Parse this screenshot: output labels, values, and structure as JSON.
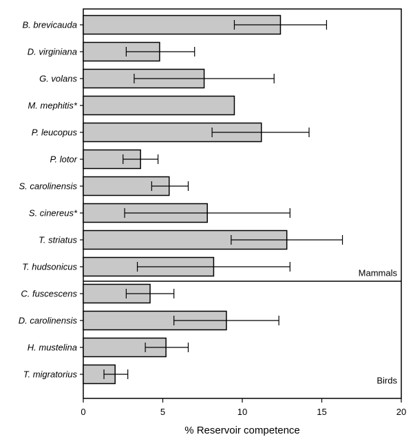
{
  "chart_data": {
    "type": "bar",
    "orientation": "horizontal",
    "xlabel": "% Reservoir competence",
    "xlim": [
      0,
      20
    ],
    "xticks": [
      0,
      5,
      10,
      15,
      20
    ],
    "grid": false,
    "groups": [
      {
        "name": "Mammals",
        "categories": [
          "B. brevicauda",
          "D. virginiana",
          "G. volans",
          "M. mephitis*",
          "P. leucopus",
          "P. lotor",
          "S. carolinensis",
          "S. cinereus*",
          "T. striatus",
          "T. hudsonicus"
        ],
        "values": [
          12.4,
          4.8,
          7.6,
          9.5,
          11.2,
          3.6,
          5.4,
          7.8,
          12.8,
          8.2
        ],
        "err_low": [
          9.5,
          2.7,
          3.2,
          null,
          8.1,
          2.5,
          4.3,
          2.6,
          9.3,
          3.4
        ],
        "err_high": [
          15.3,
          7.0,
          12.0,
          null,
          14.2,
          4.7,
          6.6,
          13.0,
          16.3,
          13.0
        ]
      },
      {
        "name": "Birds",
        "categories": [
          "C. fuscescens",
          "D. carolinensis",
          "H. mustelina",
          "T. migratorius"
        ],
        "values": [
          4.2,
          9.0,
          5.2,
          2.0
        ],
        "err_low": [
          2.7,
          5.7,
          3.9,
          1.3
        ],
        "err_high": [
          5.7,
          12.3,
          6.6,
          2.8
        ]
      }
    ]
  }
}
